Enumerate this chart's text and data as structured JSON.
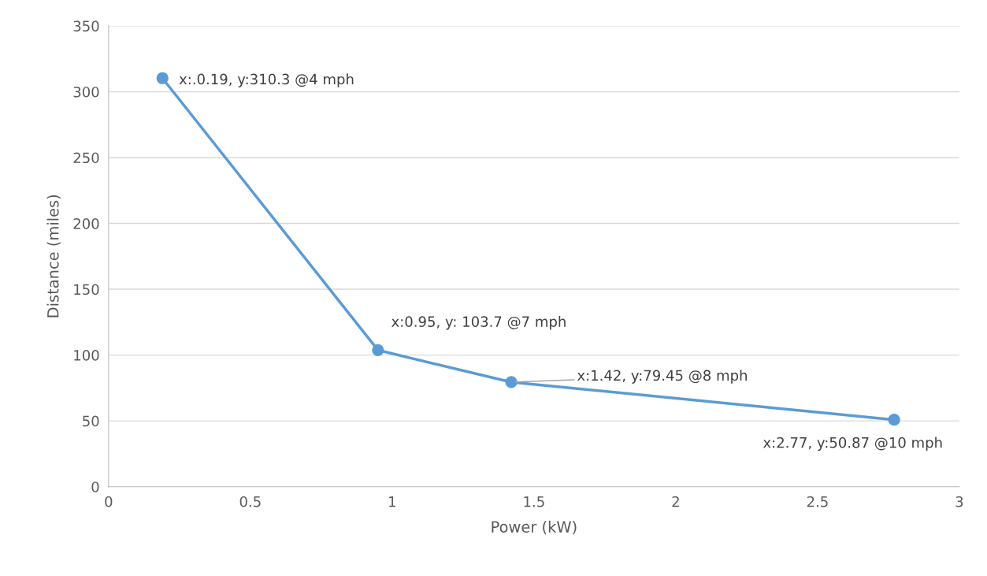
{
  "chart_data": {
    "type": "line",
    "xlabel": "Power (kW)",
    "ylabel": "Distance (miles)",
    "x": [
      0.19,
      0.95,
      1.42,
      2.77
    ],
    "series": [
      {
        "color": "#5b9bd5",
        "values": [
          310.3,
          103.7,
          79.45,
          50.87
        ]
      }
    ],
    "annotations": [
      {
        "text": "x:.0.19, y:310.3 @4 mph",
        "x": 0.19,
        "y": 310.3
      },
      {
        "text": "x:0.95, y: 103.7 @7 mph",
        "x": 0.95,
        "y": 103.7
      },
      {
        "text": "x:1.42, y:79.45 @8 mph",
        "x": 1.42,
        "y": 79.45
      },
      {
        "text": "x:2.77, y:50.87 @10 mph",
        "x": 2.77,
        "y": 50.87
      }
    ],
    "xlim": [
      0,
      3
    ],
    "xticks": [
      0,
      0.5,
      1,
      1.5,
      2,
      2.5,
      3
    ],
    "ylim": [
      0,
      350
    ],
    "yticks": [
      0,
      50,
      100,
      150,
      200,
      250,
      300,
      350
    ],
    "grid": "y",
    "marker": "circle",
    "line_style": "solid",
    "legend": false
  }
}
